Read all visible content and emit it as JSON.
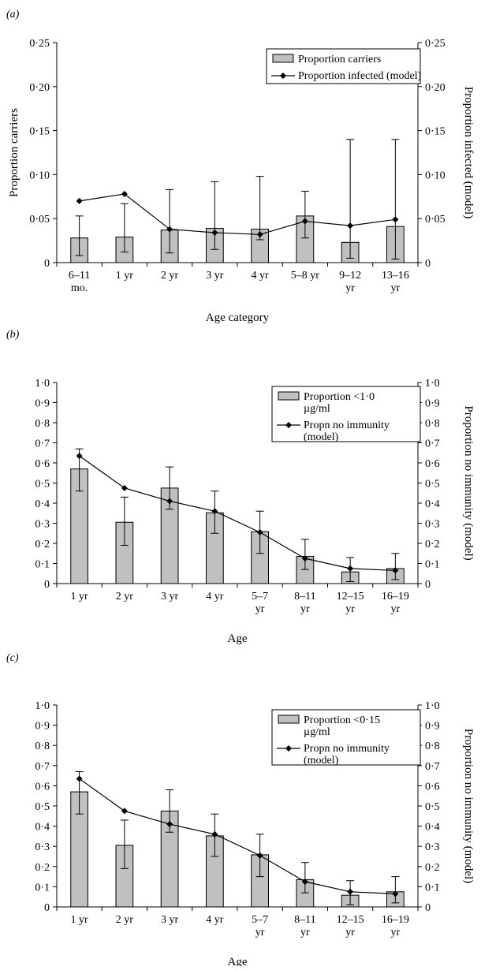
{
  "chart_data": [
    {
      "panel": "(a)",
      "type": "bar",
      "title": "",
      "categories": [
        [
          "6–11",
          "mo."
        ],
        [
          "1 yr"
        ],
        [
          "2 yr"
        ],
        [
          "3 yr"
        ],
        [
          "4 yr"
        ],
        [
          "5–8 yr"
        ],
        [
          "9–12",
          "yr"
        ],
        [
          "13–16",
          "yr"
        ]
      ],
      "xlabel": "Age category",
      "ylabel": "Proportion carriers",
      "ylabel_right": "Proportion infected (model)",
      "ylim": [
        0,
        0.25
      ],
      "yticks": [
        0,
        0.05,
        0.1,
        0.15,
        0.2,
        0.25
      ],
      "ytick_labels": [
        "0",
        "0·05",
        "0·10",
        "0·15",
        "0·20",
        "0·25"
      ],
      "legend": {
        "placement": "top-right",
        "bar_label": [
          "Proportion carriers"
        ],
        "line_label": [
          "Proportion infected (model)"
        ]
      },
      "series": [
        {
          "name": "Proportion carriers",
          "kind": "bar",
          "values": [
            0.028,
            0.029,
            0.037,
            0.039,
            0.038,
            0.053,
            0.023,
            0.041
          ],
          "error_low": [
            0.008,
            0.012,
            0.011,
            0.015,
            0.026,
            0.028,
            0.005,
            0.004
          ],
          "error_high": [
            0.053,
            0.067,
            0.083,
            0.092,
            0.098,
            0.081,
            0.14,
            0.14
          ]
        },
        {
          "name": "Proportion infected (model)",
          "kind": "line",
          "values": [
            0.07,
            0.078,
            0.038,
            0.034,
            0.032,
            0.047,
            0.042,
            0.049
          ]
        }
      ],
      "grid": false
    },
    {
      "panel": "(b)",
      "type": "bar",
      "title": "",
      "categories": [
        [
          "1 yr"
        ],
        [
          "2 yr"
        ],
        [
          "3 yr"
        ],
        [
          "4 yr"
        ],
        [
          "5–7",
          "yr"
        ],
        [
          "8–11",
          "yr"
        ],
        [
          "12–15",
          "yr"
        ],
        [
          "16–19",
          "yr"
        ]
      ],
      "xlabel": "Age",
      "ylabel": "",
      "ylabel_right": "Proportion no immunity (model)",
      "ylim": [
        0,
        1.0
      ],
      "yticks": [
        0,
        0.1,
        0.2,
        0.3,
        0.4,
        0.5,
        0.6,
        0.7,
        0.8,
        0.9,
        1.0
      ],
      "ytick_labels": [
        "0",
        "0·1",
        "0·2",
        "0·3",
        "0·4",
        "0·5",
        "0·6",
        "0·7",
        "0·8",
        "0·9",
        "1·0"
      ],
      "legend": {
        "placement": "top-right",
        "bar_label": [
          "Proportion <1·0",
          "µg/ml"
        ],
        "line_label": [
          "Propn no immunity",
          "(model)"
        ]
      },
      "series": [
        {
          "name": "Proportion <1·0 µg/ml",
          "kind": "bar",
          "values": [
            0.57,
            0.305,
            0.475,
            0.352,
            0.258,
            0.135,
            0.058,
            0.075
          ],
          "error_low": [
            0.46,
            0.19,
            0.37,
            0.25,
            0.15,
            0.07,
            0.01,
            0.02
          ],
          "error_high": [
            0.67,
            0.43,
            0.58,
            0.46,
            0.36,
            0.22,
            0.13,
            0.15
          ]
        },
        {
          "name": "Propn no immunity (model)",
          "kind": "line",
          "values": [
            0.635,
            0.475,
            0.41,
            0.36,
            0.255,
            0.125,
            0.075,
            0.065
          ]
        }
      ],
      "grid": false
    },
    {
      "panel": "(c)",
      "type": "bar",
      "title": "",
      "categories": [
        [
          "1 yr"
        ],
        [
          "2 yr"
        ],
        [
          "3 yr"
        ],
        [
          "4 yr"
        ],
        [
          "5–7",
          "yr"
        ],
        [
          "8–11",
          "yr"
        ],
        [
          "12–15",
          "yr"
        ],
        [
          "16–19",
          "yr"
        ]
      ],
      "xlabel": "Age",
      "ylabel": "",
      "ylabel_right": "Proportion no immunity (model)",
      "ylim": [
        0,
        1.0
      ],
      "yticks": [
        0,
        0.1,
        0.2,
        0.3,
        0.4,
        0.5,
        0.6,
        0.7,
        0.8,
        0.9,
        1.0
      ],
      "ytick_labels": [
        "0",
        "0·1",
        "0·2",
        "0·3",
        "0·4",
        "0·5",
        "0·6",
        "0·7",
        "0·8",
        "0·9",
        "1·0"
      ],
      "legend": {
        "placement": "top-right",
        "bar_label": [
          "Proportion <0·15",
          "µg/ml"
        ],
        "line_label": [
          "Propn no immunity",
          "(model)"
        ]
      },
      "series": [
        {
          "name": "Proportion <0·15 µg/ml",
          "kind": "bar",
          "values": [
            0.57,
            0.305,
            0.475,
            0.352,
            0.258,
            0.135,
            0.058,
            0.075
          ],
          "error_low": [
            0.46,
            0.19,
            0.37,
            0.25,
            0.15,
            0.07,
            0.01,
            0.02
          ],
          "error_high": [
            0.67,
            0.43,
            0.58,
            0.46,
            0.36,
            0.22,
            0.13,
            0.15
          ]
        },
        {
          "name": "Propn no immunity (model)",
          "kind": "line",
          "values": [
            0.635,
            0.475,
            0.41,
            0.36,
            0.255,
            0.125,
            0.075,
            0.065
          ]
        }
      ],
      "grid": false
    }
  ],
  "colors": {
    "bar_fill": "#c0c0c0",
    "bar_stroke": "#000000",
    "line": "#000000",
    "marker": "#000000"
  }
}
